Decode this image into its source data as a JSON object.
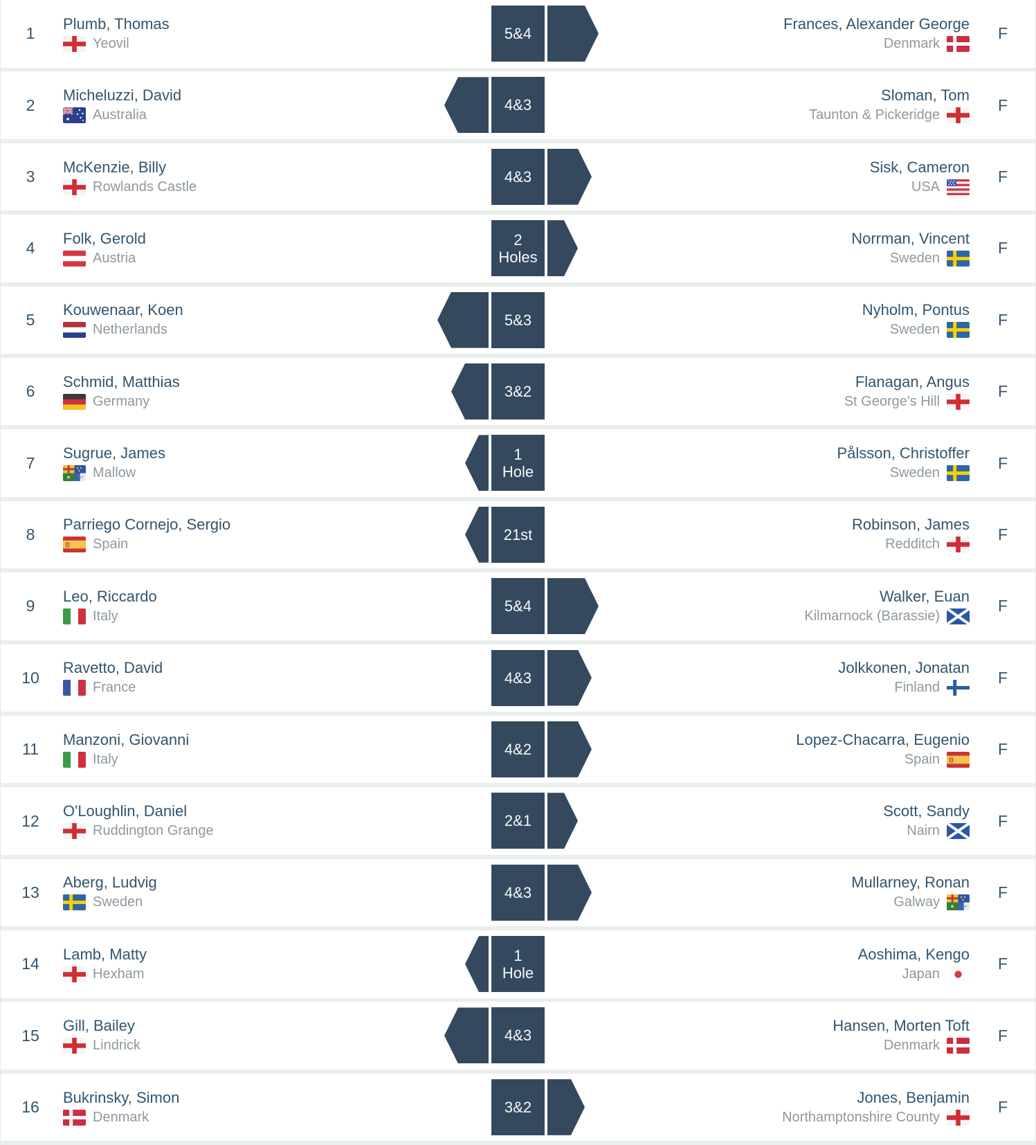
{
  "colors": {
    "accent_navy": "#34495e",
    "name_text": "#33546e",
    "muted_text": "#8e98a0",
    "divider": "#e9efed",
    "row_background": "#ffffff"
  },
  "table": {
    "final_label": "F",
    "rows": [
      {
        "match": 1,
        "score": [
          "5&4"
        ],
        "winner": "right",
        "margin": 5,
        "left": {
          "name": "Plumb, Thomas",
          "club": "Yeovil",
          "flag": "england"
        },
        "right": {
          "name": "Frances, Alexander George",
          "club": "Denmark",
          "flag": "denmark"
        }
      },
      {
        "match": 2,
        "score": [
          "4&3"
        ],
        "winner": "left",
        "margin": 4,
        "left": {
          "name": "Micheluzzi, David",
          "club": "Australia",
          "flag": "australia"
        },
        "right": {
          "name": "Sloman, Tom",
          "club": "Taunton & Pickeridge",
          "flag": "england"
        }
      },
      {
        "match": 3,
        "score": [
          "4&3"
        ],
        "winner": "right",
        "margin": 4,
        "left": {
          "name": "McKenzie, Billy",
          "club": "Rowlands Castle",
          "flag": "england"
        },
        "right": {
          "name": "Sisk, Cameron",
          "club": "USA",
          "flag": "usa"
        }
      },
      {
        "match": 4,
        "score": [
          "2",
          "Holes"
        ],
        "winner": "right",
        "margin": 2,
        "left": {
          "name": "Folk, Gerold",
          "club": "Austria",
          "flag": "austria"
        },
        "right": {
          "name": "Norrman, Vincent",
          "club": "Sweden",
          "flag": "sweden"
        }
      },
      {
        "match": 5,
        "score": [
          "5&3"
        ],
        "winner": "left",
        "margin": 5,
        "left": {
          "name": "Kouwenaar, Koen",
          "club": "Netherlands",
          "flag": "netherlands"
        },
        "right": {
          "name": "Nyholm, Pontus",
          "club": "Sweden",
          "flag": "sweden"
        }
      },
      {
        "match": 6,
        "score": [
          "3&2"
        ],
        "winner": "left",
        "margin": 3,
        "left": {
          "name": "Schmid, Matthias",
          "club": "Germany",
          "flag": "germany"
        },
        "right": {
          "name": "Flanagan, Angus",
          "club": "St George's Hill",
          "flag": "england"
        }
      },
      {
        "match": 7,
        "score": [
          "1",
          "Hole"
        ],
        "winner": "left",
        "margin": 1,
        "left": {
          "name": "Sugrue, James",
          "club": "Mallow",
          "flag": "ireland"
        },
        "right": {
          "name": "Pålsson, Christoffer",
          "club": "Sweden",
          "flag": "sweden"
        }
      },
      {
        "match": 8,
        "score": [
          "21st"
        ],
        "winner": "left",
        "margin": 1,
        "left": {
          "name": "Parriego Cornejo, Sergio",
          "club": "Spain",
          "flag": "spain"
        },
        "right": {
          "name": "Robinson, James",
          "club": "Redditch",
          "flag": "england"
        }
      },
      {
        "match": 9,
        "score": [
          "5&4"
        ],
        "winner": "right",
        "margin": 5,
        "left": {
          "name": "Leo, Riccardo",
          "club": "Italy",
          "flag": "italy"
        },
        "right": {
          "name": "Walker, Euan",
          "club": "Kilmarnock (Barassie)",
          "flag": "scotland"
        }
      },
      {
        "match": 10,
        "score": [
          "4&3"
        ],
        "winner": "right",
        "margin": 4,
        "left": {
          "name": "Ravetto, David",
          "club": "France",
          "flag": "france"
        },
        "right": {
          "name": "Jolkkonen, Jonatan",
          "club": "Finland",
          "flag": "finland"
        }
      },
      {
        "match": 11,
        "score": [
          "4&2"
        ],
        "winner": "right",
        "margin": 4,
        "left": {
          "name": "Manzoni, Giovanni",
          "club": "Italy",
          "flag": "italy"
        },
        "right": {
          "name": "Lopez-Chacarra, Eugenio",
          "club": "Spain",
          "flag": "spain"
        }
      },
      {
        "match": 12,
        "score": [
          "2&1"
        ],
        "winner": "right",
        "margin": 2,
        "left": {
          "name": "O'Loughlin, Daniel",
          "club": "Ruddington Grange",
          "flag": "england"
        },
        "right": {
          "name": "Scott, Sandy",
          "club": "Nairn",
          "flag": "scotland"
        }
      },
      {
        "match": 13,
        "score": [
          "4&3"
        ],
        "winner": "right",
        "margin": 4,
        "left": {
          "name": "Aberg, Ludvig",
          "club": "Sweden",
          "flag": "sweden"
        },
        "right": {
          "name": "Mullarney, Ronan",
          "club": "Galway",
          "flag": "ireland"
        }
      },
      {
        "match": 14,
        "score": [
          "1",
          "Hole"
        ],
        "winner": "left",
        "margin": 1,
        "left": {
          "name": "Lamb, Matty",
          "club": "Hexham",
          "flag": "england"
        },
        "right": {
          "name": "Aoshima, Kengo",
          "club": "Japan",
          "flag": "japan"
        }
      },
      {
        "match": 15,
        "score": [
          "4&3"
        ],
        "winner": "left",
        "margin": 4,
        "left": {
          "name": "Gill, Bailey",
          "club": "Lindrick",
          "flag": "england"
        },
        "right": {
          "name": "Hansen, Morten Toft",
          "club": "Denmark",
          "flag": "denmark"
        }
      },
      {
        "match": 16,
        "score": [
          "3&2"
        ],
        "winner": "right",
        "margin": 3,
        "left": {
          "name": "Bukrinsky, Simon",
          "club": "Denmark",
          "flag": "denmark"
        },
        "right": {
          "name": "Jones, Benjamin",
          "club": "Northamptonshire County",
          "flag": "england"
        }
      }
    ]
  }
}
